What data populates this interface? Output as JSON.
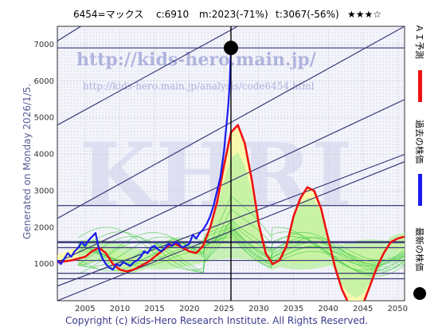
{
  "header": {
    "ticker": "6454=マックス",
    "current": "c:6910",
    "min": "m:2023(-71%)",
    "target": "t:3067(-56%)",
    "stars": "★★★☆"
  },
  "side_label": "Generated on Monday 2026/1/5.",
  "footer": "Copyright (c) Kids-Hero Research Institute. All Rights Reserved.",
  "watermark": {
    "big": "KHRI",
    "url": "http://kids-hero.main.jp/",
    "url2": "http://kids-hero.main.jp/analysis/code6454.html"
  },
  "legend": {
    "ai": "ＡＩ予測",
    "past": "過去の株価",
    "latest": "最新の株価"
  },
  "colors": {
    "ai": "#ee1111",
    "past": "#1a1aee",
    "latest": "#000000",
    "band": "#44cc44",
    "band_fill": "#b8f0a0",
    "yellow_fill": "#fafaa0",
    "channel": "#3a3a78"
  },
  "chart_data": {
    "type": "line",
    "xlim": [
      2001,
      2051
    ],
    "ylim": [
      0,
      7500
    ],
    "x_ticks": [
      2005,
      2010,
      2015,
      2020,
      2025,
      2030,
      2035,
      2040,
      2045,
      2050
    ],
    "y_ticks": [
      1000,
      2000,
      3000,
      4000,
      5000,
      6000,
      7000
    ],
    "grid": true,
    "latest_point": {
      "x": 2026,
      "y": 6910
    },
    "current_marker_x": 2026,
    "series": [
      {
        "name": "過去の株価",
        "x": [
          2001,
          2001.5,
          2002,
          2002.5,
          2003,
          2003.5,
          2004,
          2004.5,
          2005,
          2005.5,
          2006,
          2006.5,
          2007,
          2007.5,
          2008,
          2008.5,
          2009,
          2009.5,
          2010,
          2010.5,
          2011,
          2011.5,
          2012,
          2012.5,
          2013,
          2013.5,
          2014,
          2014.5,
          2015,
          2015.5,
          2016,
          2016.5,
          2017,
          2017.5,
          2018,
          2018.5,
          2019,
          2019.5,
          2020,
          2020.5,
          2021,
          2021.5,
          2022,
          2022.5,
          2023,
          2023.5,
          2024,
          2024.5,
          2025,
          2025.3,
          2025.6,
          2025.8,
          2026
        ],
        "y": [
          1100,
          1000,
          1150,
          1300,
          1200,
          1350,
          1450,
          1600,
          1500,
          1650,
          1750,
          1850,
          1400,
          1150,
          1000,
          900,
          850,
          1000,
          950,
          1050,
          1000,
          950,
          1050,
          1100,
          1200,
          1350,
          1300,
          1450,
          1500,
          1400,
          1350,
          1450,
          1550,
          1500,
          1600,
          1550,
          1450,
          1500,
          1550,
          1800,
          1700,
          1850,
          1950,
          2100,
          2300,
          2600,
          3000,
          3400,
          4100,
          4700,
          5300,
          5900,
          6910
        ]
      },
      {
        "name": "ＡＩ予測",
        "x": [
          2001,
          2003,
          2005,
          2006,
          2007,
          2008,
          2009,
          2010,
          2011,
          2012,
          2013,
          2014,
          2015,
          2016,
          2017,
          2018,
          2019,
          2020,
          2021,
          2022,
          2023,
          2024,
          2025,
          2026,
          2027,
          2028,
          2029,
          2030,
          2031,
          2032,
          2033,
          2034,
          2035,
          2036,
          2037,
          2038,
          2039,
          2040,
          2041,
          2042,
          2043,
          2044,
          2045,
          2046,
          2047,
          2048,
          2049,
          2050,
          2051
        ],
        "y": [
          1050,
          1100,
          1200,
          1350,
          1450,
          1300,
          1000,
          850,
          800,
          850,
          950,
          1050,
          1200,
          1350,
          1500,
          1550,
          1450,
          1350,
          1300,
          1500,
          2000,
          2700,
          3700,
          4600,
          4800,
          4300,
          3300,
          2100,
          1300,
          1000,
          1100,
          1500,
          2300,
          2800,
          3100,
          3000,
          2500,
          1700,
          900,
          300,
          -100,
          -300,
          -100,
          400,
          900,
          1300,
          1600,
          1700,
          1750
        ]
      }
    ]
  }
}
